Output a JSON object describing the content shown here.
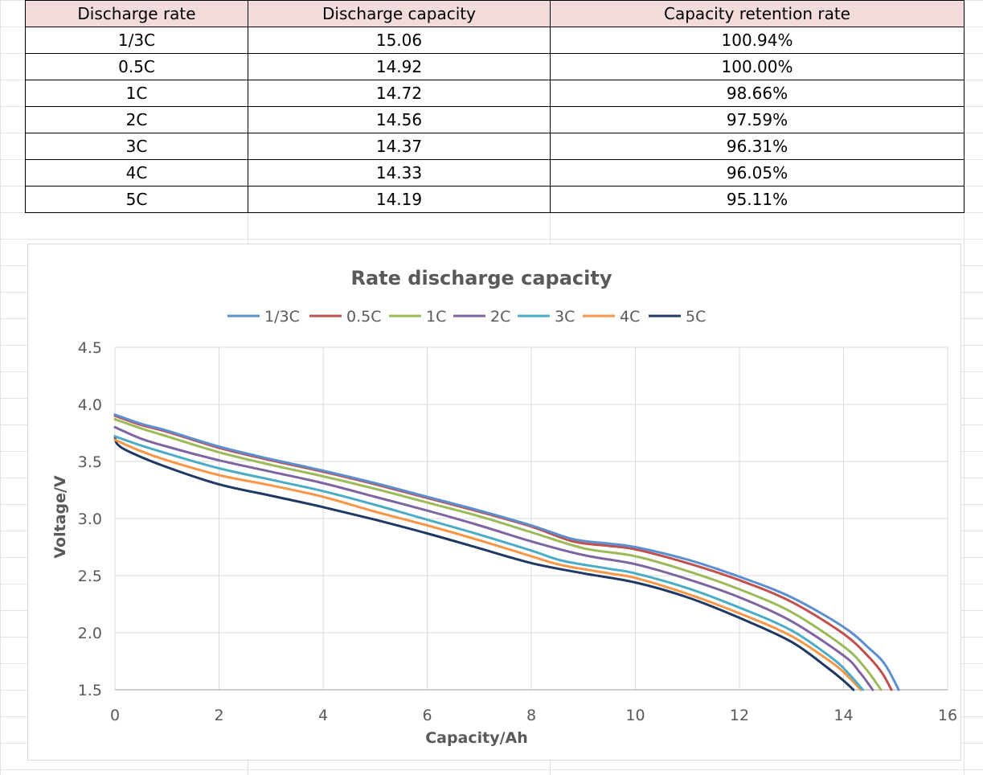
{
  "table": {
    "headers": [
      "Discharge rate",
      "Discharge capacity",
      "Capacity retention rate"
    ],
    "rows": [
      [
        "1/3C",
        "15.06",
        "100.94%"
      ],
      [
        "0.5C",
        "14.92",
        "100.00%"
      ],
      [
        "1C",
        "14.72",
        "98.66%"
      ],
      [
        "2C",
        "14.56",
        "97.59%"
      ],
      [
        "3C",
        "14.37",
        "96.31%"
      ],
      [
        "4C",
        "14.33",
        "96.05%"
      ],
      [
        "5C",
        "14.19",
        "95.11%"
      ]
    ]
  },
  "chart_data": {
    "type": "line",
    "title": "Rate discharge capacity",
    "xlabel": "Capacity/Ah",
    "ylabel": "Voltage/V",
    "xlim": [
      0,
      16
    ],
    "ylim": [
      1.5,
      4.5
    ],
    "xticks": [
      "0",
      "2",
      "4",
      "6",
      "8",
      "10",
      "12",
      "14",
      "16"
    ],
    "yticks": [
      "1.5",
      "2.0",
      "2.5",
      "3.0",
      "3.5",
      "4.0",
      "4.5"
    ],
    "xtick_values": [
      0,
      2,
      4,
      6,
      8,
      10,
      12,
      14,
      16
    ],
    "ytick_values": [
      1.5,
      2.0,
      2.5,
      3.0,
      3.5,
      4.0,
      4.5
    ],
    "grid": true,
    "legend_position": "top",
    "series": [
      {
        "name": "1/3C",
        "color": "#5b8fd0",
        "points": [
          [
            0,
            3.91
          ],
          [
            0.5,
            3.83
          ],
          [
            1,
            3.77
          ],
          [
            2,
            3.63
          ],
          [
            3,
            3.52
          ],
          [
            4,
            3.42
          ],
          [
            5,
            3.31
          ],
          [
            6,
            3.19
          ],
          [
            7,
            3.07
          ],
          [
            8,
            2.94
          ],
          [
            8.8,
            2.82
          ],
          [
            9.5,
            2.78
          ],
          [
            10,
            2.75
          ],
          [
            11,
            2.64
          ],
          [
            12,
            2.49
          ],
          [
            13,
            2.31
          ],
          [
            14,
            2.05
          ],
          [
            14.5,
            1.86
          ],
          [
            14.8,
            1.72
          ],
          [
            15.06,
            1.5
          ]
        ]
      },
      {
        "name": "0.5C",
        "color": "#c0504d",
        "points": [
          [
            0,
            3.9
          ],
          [
            0.5,
            3.82
          ],
          [
            1,
            3.76
          ],
          [
            2,
            3.62
          ],
          [
            3,
            3.51
          ],
          [
            4,
            3.41
          ],
          [
            5,
            3.3
          ],
          [
            6,
            3.18
          ],
          [
            7,
            3.06
          ],
          [
            8,
            2.93
          ],
          [
            8.8,
            2.8
          ],
          [
            9.5,
            2.76
          ],
          [
            10,
            2.73
          ],
          [
            11,
            2.61
          ],
          [
            12,
            2.46
          ],
          [
            13,
            2.27
          ],
          [
            14,
            1.99
          ],
          [
            14.5,
            1.78
          ],
          [
            14.75,
            1.64
          ],
          [
            14.92,
            1.5
          ]
        ]
      },
      {
        "name": "1C",
        "color": "#9bbb59",
        "points": [
          [
            0,
            3.87
          ],
          [
            0.5,
            3.79
          ],
          [
            1,
            3.72
          ],
          [
            2,
            3.58
          ],
          [
            3,
            3.47
          ],
          [
            4,
            3.37
          ],
          [
            5,
            3.26
          ],
          [
            6,
            3.14
          ],
          [
            7,
            3.02
          ],
          [
            8,
            2.88
          ],
          [
            9,
            2.74
          ],
          [
            10,
            2.67
          ],
          [
            11,
            2.54
          ],
          [
            12,
            2.38
          ],
          [
            13,
            2.18
          ],
          [
            14,
            1.88
          ],
          [
            14.4,
            1.7
          ],
          [
            14.72,
            1.5
          ]
        ]
      },
      {
        "name": "2C",
        "color": "#8064a2",
        "points": [
          [
            0,
            3.8
          ],
          [
            0.5,
            3.7
          ],
          [
            1,
            3.63
          ],
          [
            2,
            3.51
          ],
          [
            3,
            3.41
          ],
          [
            4,
            3.31
          ],
          [
            5,
            3.19
          ],
          [
            6,
            3.07
          ],
          [
            7,
            2.94
          ],
          [
            8,
            2.8
          ],
          [
            9,
            2.68
          ],
          [
            10,
            2.6
          ],
          [
            11,
            2.47
          ],
          [
            12,
            2.31
          ],
          [
            13,
            2.1
          ],
          [
            14,
            1.8
          ],
          [
            14.3,
            1.66
          ],
          [
            14.56,
            1.5
          ]
        ]
      },
      {
        "name": "3C",
        "color": "#4bacc6",
        "points": [
          [
            0,
            3.72
          ],
          [
            0.5,
            3.64
          ],
          [
            1,
            3.57
          ],
          [
            2,
            3.44
          ],
          [
            3,
            3.34
          ],
          [
            4,
            3.24
          ],
          [
            5,
            3.12
          ],
          [
            6,
            2.99
          ],
          [
            7,
            2.86
          ],
          [
            8,
            2.72
          ],
          [
            8.6,
            2.63
          ],
          [
            9.5,
            2.56
          ],
          [
            10,
            2.52
          ],
          [
            11,
            2.39
          ],
          [
            12,
            2.22
          ],
          [
            13,
            2.02
          ],
          [
            13.8,
            1.77
          ],
          [
            14.1,
            1.64
          ],
          [
            14.37,
            1.5
          ]
        ]
      },
      {
        "name": "4C",
        "color": "#f79646",
        "points": [
          [
            0,
            3.69
          ],
          [
            0.5,
            3.59
          ],
          [
            1,
            3.51
          ],
          [
            2,
            3.38
          ],
          [
            3,
            3.29
          ],
          [
            4,
            3.19
          ],
          [
            5,
            3.06
          ],
          [
            6,
            2.94
          ],
          [
            7,
            2.81
          ],
          [
            8,
            2.67
          ],
          [
            8.6,
            2.59
          ],
          [
            9.5,
            2.52
          ],
          [
            10,
            2.48
          ],
          [
            11,
            2.34
          ],
          [
            12,
            2.17
          ],
          [
            13,
            1.97
          ],
          [
            13.8,
            1.73
          ],
          [
            14.1,
            1.61
          ],
          [
            14.33,
            1.5
          ]
        ]
      },
      {
        "name": "5C",
        "color": "#1f3864",
        "points": [
          [
            0,
            3.72
          ],
          [
            0.05,
            3.65
          ],
          [
            0.3,
            3.58
          ],
          [
            1,
            3.45
          ],
          [
            2,
            3.3
          ],
          [
            3,
            3.2
          ],
          [
            4,
            3.1
          ],
          [
            5,
            2.99
          ],
          [
            6,
            2.87
          ],
          [
            7,
            2.74
          ],
          [
            8,
            2.61
          ],
          [
            9,
            2.52
          ],
          [
            10,
            2.44
          ],
          [
            11,
            2.31
          ],
          [
            12,
            2.13
          ],
          [
            13,
            1.92
          ],
          [
            13.7,
            1.69
          ],
          [
            14.0,
            1.58
          ],
          [
            14.19,
            1.5
          ]
        ]
      }
    ]
  }
}
